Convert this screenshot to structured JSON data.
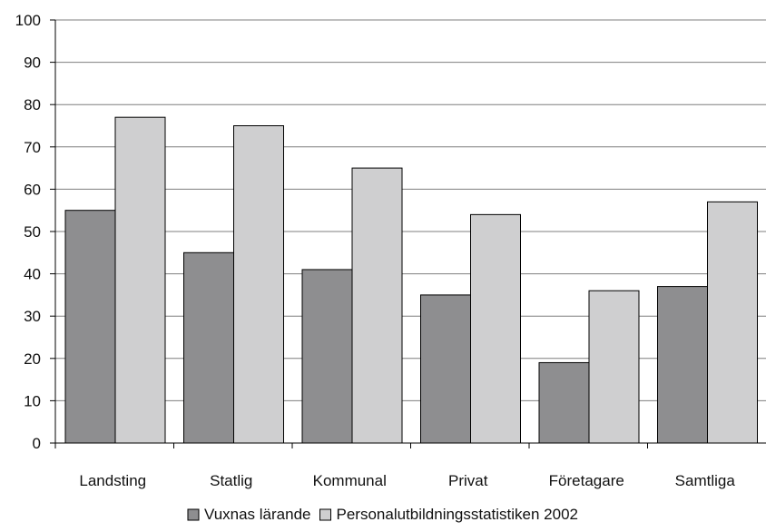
{
  "chart_data": {
    "type": "bar",
    "title": "",
    "xlabel": "",
    "ylabel": "",
    "categories": [
      "Landsting",
      "Statlig",
      "Kommunal",
      "Privat",
      "Företagare",
      "Samtliga"
    ],
    "series": [
      {
        "name": "Vuxnas lärande",
        "values": [
          55,
          45,
          41,
          35,
          19,
          37
        ],
        "color": "#8e8e90"
      },
      {
        "name": "Personalutbildningsstatistiken 2002",
        "values": [
          77,
          75,
          65,
          54,
          36,
          57
        ],
        "color": "#cfcfd0"
      }
    ],
    "ylim": [
      0,
      100
    ],
    "yticks": [
      0,
      10,
      20,
      30,
      40,
      50,
      60,
      70,
      80,
      90,
      100
    ],
    "grid": true,
    "legend_position": "bottom",
    "stroke_color": "#000000",
    "grid_color": "#7f7f7f"
  }
}
